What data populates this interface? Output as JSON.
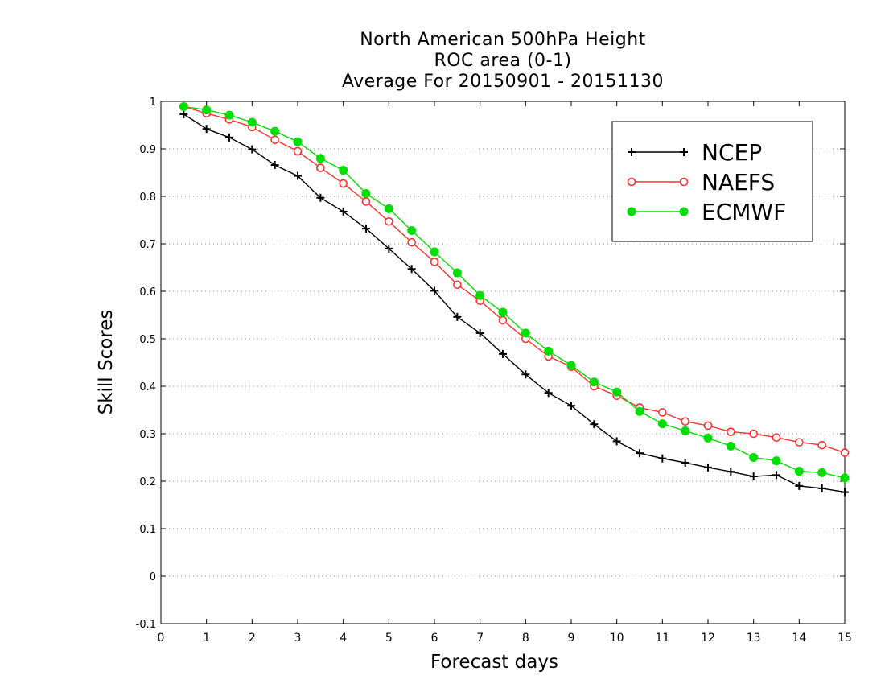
{
  "chart_data": {
    "type": "line",
    "title": [
      "North American 500hPa Height",
      "ROC area (0-1)",
      "Average For 20150901 - 20151130"
    ],
    "xlabel": "Forecast days",
    "ylabel": "Skill Scores",
    "xlim": [
      0,
      15
    ],
    "ylim": [
      -0.1,
      1
    ],
    "xticks": [
      0,
      1,
      2,
      3,
      4,
      5,
      6,
      7,
      8,
      9,
      10,
      11,
      12,
      13,
      14,
      15
    ],
    "yticks": [
      -0.1,
      0,
      0.1,
      0.2,
      0.3,
      0.4,
      0.5,
      0.6,
      0.7,
      0.8,
      0.9,
      1
    ],
    "ytick_labels": [
      "-0.1",
      "0",
      "0.1",
      "0.2",
      "0.3",
      "0.4",
      "0.5",
      "0.6",
      "0.7",
      "0.8",
      "0.9",
      "1"
    ],
    "grid": "horizontal dotted",
    "legend_position": "top-right",
    "x": [
      0.5,
      1,
      1.5,
      2,
      2.5,
      3,
      3.5,
      4,
      4.5,
      5,
      5.5,
      6,
      6.5,
      7,
      7.5,
      8,
      8.5,
      9,
      9.5,
      10,
      10.5,
      11,
      11.5,
      12,
      12.5,
      13,
      13.5,
      14,
      14.5,
      15
    ],
    "series": [
      {
        "name": "NCEP",
        "color": "#000000",
        "marker": "plus",
        "values": [
          0.973,
          0.942,
          0.924,
          0.899,
          0.866,
          0.843,
          0.797,
          0.768,
          0.732,
          0.69,
          0.647,
          0.601,
          0.546,
          0.512,
          0.468,
          0.425,
          0.386,
          0.359,
          0.32,
          0.284,
          0.259,
          0.248,
          0.239,
          0.229,
          0.22,
          0.21,
          0.213,
          0.19,
          0.185,
          0.177
        ]
      },
      {
        "name": "NAEFS",
        "color": "#ff3030",
        "marker": "open-circle",
        "values": [
          0.989,
          0.975,
          0.962,
          0.946,
          0.919,
          0.895,
          0.86,
          0.827,
          0.789,
          0.747,
          0.703,
          0.662,
          0.614,
          0.58,
          0.539,
          0.5,
          0.463,
          0.441,
          0.4,
          0.38,
          0.355,
          0.345,
          0.326,
          0.317,
          0.304,
          0.3,
          0.292,
          0.282,
          0.276,
          0.26
        ]
      },
      {
        "name": "ECMWF",
        "color": "#00dd00",
        "marker": "filled-circle",
        "values": [
          0.989,
          0.982,
          0.971,
          0.956,
          0.937,
          0.915,
          0.88,
          0.855,
          0.806,
          0.774,
          0.728,
          0.683,
          0.639,
          0.591,
          0.556,
          0.512,
          0.474,
          0.444,
          0.409,
          0.388,
          0.347,
          0.321,
          0.306,
          0.291,
          0.274,
          0.25,
          0.243,
          0.221,
          0.218,
          0.207
        ]
      }
    ]
  }
}
